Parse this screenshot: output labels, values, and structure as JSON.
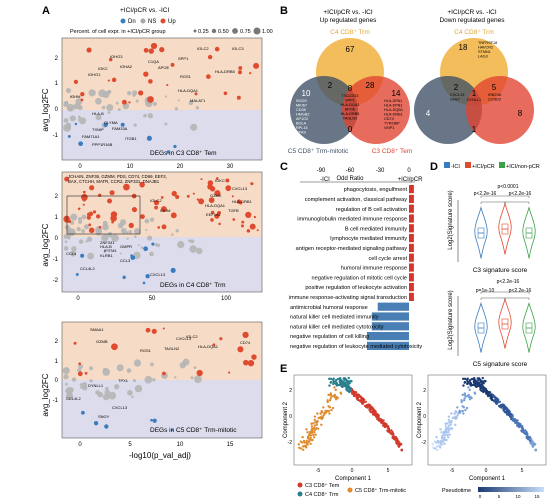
{
  "panels": {
    "A": {
      "letter": "A",
      "legend_title": "+ICI/pCR vs. -ICI",
      "legend_items": [
        {
          "label": "Dn",
          "color": "#3a7cc0"
        },
        {
          "label": "NS",
          "color": "#a6a6a6"
        },
        {
          "label": "Up",
          "color": "#e04a2f"
        }
      ],
      "size_legend_title": "Percent. of cell expr. in +ICI/pCR group",
      "size_legend_values": [
        "0.25",
        "0.50",
        "0.75",
        "1.00"
      ],
      "ylabel": "avg_log2FC",
      "xlabel": "-log10(p_val_adj)",
      "subplots": [
        {
          "title": "DEGs in C3 CD8⁺ Tem",
          "y_ticks": [
            "2",
            "1",
            "0",
            "-1"
          ],
          "x_ticks": [
            "0",
            "10",
            "20",
            "30"
          ],
          "up_genes": [
            "IGLC2",
            "IGHG3",
            "IGHA2",
            "IGHG1",
            "IGLC3",
            "IGKC",
            "HLA-DRB5",
            "C1QA",
            "SPP1",
            "APOE",
            "RGS1",
            "HLA-DQA1",
            "MALAT1",
            "IGHM"
          ],
          "dn_genes": [
            "HLA-B",
            "GLYMA",
            "TXNIP",
            "FAM33A",
            "FAM71A1",
            "PPP1R16B",
            "ITGB1"
          ]
        },
        {
          "title": "DEGs in C4 CD8⁺ Trm",
          "y_ticks": [
            "2",
            "1",
            "0",
            "-1",
            "-2"
          ],
          "x_ticks": [
            "0",
            "50",
            "100"
          ],
          "box_genes": "JCHAIN, ZNF36, GZMM, PDS, CD74, CD69, EEF2, BAX, CTCHH, MATR, CCR2, ZNF331, DNAJB1",
          "up_genes": [
            "IGKC",
            "IGLC2",
            "CXCL13",
            "GZMK",
            "HLA-DQA1",
            "HLA-DRB1",
            "EEF1A1",
            "IGHM",
            "TGFB"
          ],
          "dn_genes": [
            "CCL4",
            "HLA-B",
            "CCL4L2",
            "CCL3",
            "KLRB1",
            "CXCL13",
            "IFITM1",
            "ZNF331",
            "GMPR"
          ]
        },
        {
          "title": "DEGs in C5 CD8⁺ Trm-mitotic",
          "y_ticks": [
            "2",
            "1",
            "0",
            "-1"
          ],
          "x_ticks": [
            "0",
            "5",
            "10",
            "15"
          ],
          "up_genes": [
            "SMAA1",
            "GZMB",
            "RGS1",
            "CXCL13",
            "TAGLN2",
            "HLA-DQA1",
            "IGLC2",
            "CD74"
          ],
          "dn_genes": [
            "CCL4L2",
            "DYNLL1",
            "CXCL13",
            "SNGY",
            "TPX1"
          ]
        }
      ]
    },
    "B": {
      "letter": "B",
      "venn_up": {
        "title_line1": "+ICI/pCR vs. -ICI",
        "title_line2": "Up regulated genes",
        "set_top": "C4 CD8⁺ Trm",
        "set_left": "C5 CD8⁺ Trm-mitotic",
        "set_right": "C3 CD8⁺ Tem",
        "counts": {
          "top_only": "67",
          "left_only": "10",
          "right_only": "14",
          "top_left": "2",
          "top_right": "28",
          "left_right": "0",
          "center": "8"
        },
        "left_genes": [
          "ISG20",
          "MKI67",
          "CD38",
          "HMGB2",
          "AP1G2",
          "BOLA",
          "RPL15",
          "CFAS"
        ],
        "center_genes": [
          "TSC22D3",
          "SPP1",
          "HLA-DQA1",
          "APOE",
          "HLA-DRB5",
          "TAGLN2"
        ],
        "right_genes": [
          "HLA-DPA1",
          "HLA-DPB1",
          "HLA-DQB1",
          "HLA-DRB1",
          "CD74",
          "TYROBP",
          "VMP1"
        ]
      },
      "venn_down": {
        "title_line1": "+ICI/pCR vs. -ICI",
        "title_line2": "Down regulated genes",
        "set_top": "C4 CD8⁺ Trm",
        "counts": {
          "top_only": "18",
          "left_only": "4",
          "right_only": "8",
          "top_left": "2",
          "top_right": "5",
          "left_right": "1",
          "center": "1"
        },
        "top_genes": [
          "TNFRSF18",
          "HAVCR2",
          "STMN1",
          "LAG3"
        ],
        "center_left_genes": [
          "CXCL13",
          "GNLY"
        ],
        "center_genes": [
          "DYNLL1"
        ],
        "center_right_genes": [
          "IRB2VA",
          "CCND2"
        ]
      }
    },
    "C": {
      "letter": "C",
      "axis_title": "Odd Ratio",
      "tick_labels": [
        "-90",
        "-60",
        "-30",
        "0"
      ],
      "neg_label": "-ICI",
      "pos_label": "+ICI/pCR",
      "terms": [
        {
          "label": "phagocytosis, engulfment",
          "value": 5,
          "dir": "up"
        },
        {
          "label": "complement activation, classical pathway",
          "value": 5,
          "dir": "up"
        },
        {
          "label": "regulation of B cell activation",
          "value": 5,
          "dir": "up"
        },
        {
          "label": "immunoglobulin mediated immune response",
          "value": 5,
          "dir": "up"
        },
        {
          "label": "B cell mediated immunity",
          "value": 5,
          "dir": "up"
        },
        {
          "label": "lymphocyte mediated immunity",
          "value": 5,
          "dir": "up"
        },
        {
          "label": "antigen receptor-mediated signaling pathway",
          "value": 5,
          "dir": "up"
        },
        {
          "label": "cell cycle arrest",
          "value": 5,
          "dir": "up"
        },
        {
          "label": "humoral immune response",
          "value": 5,
          "dir": "up"
        },
        {
          "label": "negative regulation of mitotic cell cycle",
          "value": 5,
          "dir": "up"
        },
        {
          "label": "positive regulation of leukocyte activation",
          "value": 5,
          "dir": "up"
        },
        {
          "label": "immune response-activating signal transduction",
          "value": 5,
          "dir": "up"
        },
        {
          "label": "antimicrobial humoral response",
          "value": -32,
          "dir": "down"
        },
        {
          "label": "natural killer cell mediated immunity",
          "value": -38,
          "dir": "down"
        },
        {
          "label": "natural killer cell mediated cytotoxicity",
          "value": -38,
          "dir": "down"
        },
        {
          "label": "negative regulation of cell killing",
          "value": -43,
          "dir": "down"
        },
        {
          "label": "negative regulation of leukocyte mediated cytotoxicity",
          "value": -43,
          "dir": "down"
        }
      ]
    },
    "D": {
      "letter": "D",
      "legend": [
        {
          "label": "-ICI",
          "color": "#3a7cc0"
        },
        {
          "label": "+ICI/pCR",
          "color": "#e04a2f"
        },
        {
          "label": "+ICI/non-pCR",
          "color": "#3aa148"
        }
      ],
      "ylabel": "Log2(Signature score)",
      "plots": [
        {
          "caption": "C3 signature score",
          "p_top": "p<0.0001",
          "p_left": "p<2.2e-16",
          "p_right": "p<2.2e-16"
        },
        {
          "caption": "C5 signature score",
          "p_top": "p<2.2e-16",
          "p_left": "p=1e-10",
          "p_right": "p<2.2e-16"
        }
      ]
    },
    "E": {
      "letter": "E",
      "xlabel": "Component 1",
      "ylabel": "Component 2",
      "left_x_ticks": [
        "-5",
        "0",
        "5"
      ],
      "right_x_ticks": [
        "-5",
        "0",
        "5"
      ],
      "y_ticks": [
        "2",
        "0",
        "-2"
      ],
      "legend": [
        {
          "label": "C3 CD8⁺ Tem",
          "color": "#d13a2d"
        },
        {
          "label": "C5 CD8⁺ Trm-mitotic",
          "color": "#e08a2e"
        },
        {
          "label": "C4 CD8⁺ Trm",
          "color": "#2a7f8e"
        }
      ],
      "pseudotime_label": "Pseudotime",
      "pseudotime_ticks": [
        "0",
        "5",
        "10",
        "15"
      ]
    }
  }
}
